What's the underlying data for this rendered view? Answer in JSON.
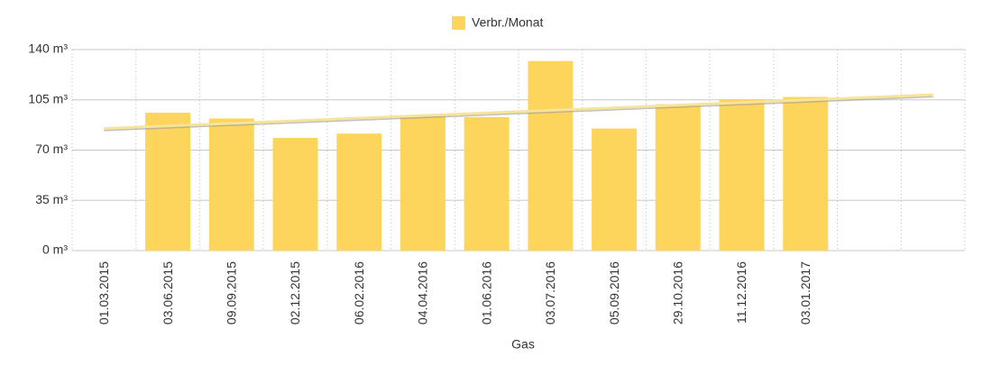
{
  "chart_data": {
    "type": "bar",
    "legend_position": "top",
    "x_label": "Gas",
    "categories": [
      "01.03.2015",
      "03.06.2015",
      "09.09.2015",
      "02.12.2015",
      "06.02.2016",
      "04.04.2016",
      "01.06.2016",
      "03.07.2016",
      "05.09.2016",
      "29.10.2016",
      "11.12.2016",
      "03.01.2017",
      null,
      null
    ],
    "series": [
      {
        "name": "Verbr./Monat",
        "color": "#fdd55b",
        "values": [
          null,
          96,
          92,
          78.5,
          81.5,
          94,
          93,
          132,
          85,
          102,
          105.5,
          107,
          null,
          null
        ]
      }
    ],
    "trend_line": {
      "color": "#f7e39a",
      "values": [
        85,
        108.5
      ]
    },
    "ylim": [
      0,
      140
    ],
    "yticks": [
      {
        "value": 0,
        "label": "0 m³"
      },
      {
        "value": 35,
        "label": "35 m³"
      },
      {
        "value": 70,
        "label": "70 m³"
      },
      {
        "value": 105,
        "label": "105 m³"
      },
      {
        "value": 140,
        "label": "140 m³"
      }
    ],
    "grid": true
  }
}
